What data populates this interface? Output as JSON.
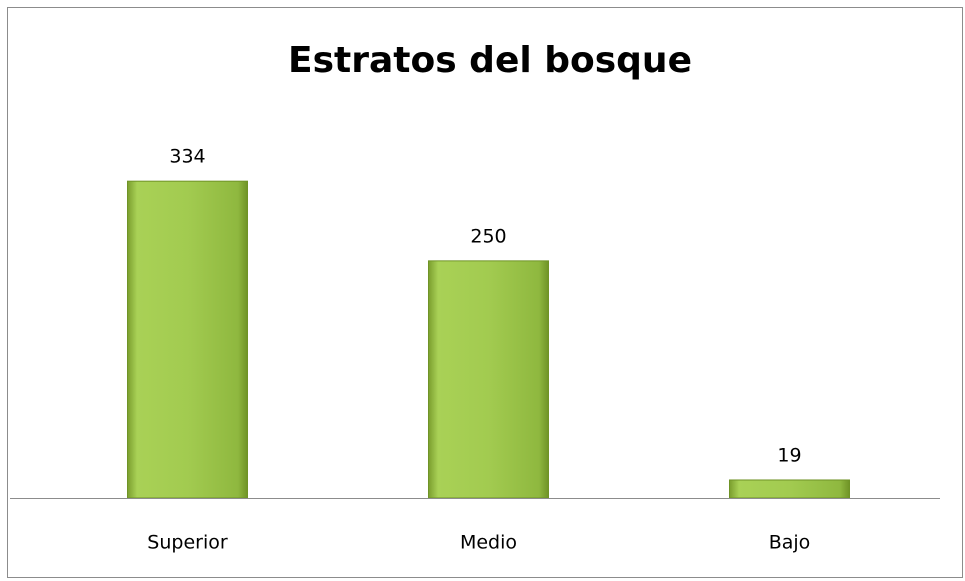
{
  "chart_data": {
    "type": "bar",
    "title": "Estratos del bosque",
    "categories": [
      "Superior",
      "Medio",
      "Bajo"
    ],
    "values": [
      334,
      250,
      19
    ],
    "color": "#9bc44a",
    "ylim": [
      0,
      350
    ]
  }
}
